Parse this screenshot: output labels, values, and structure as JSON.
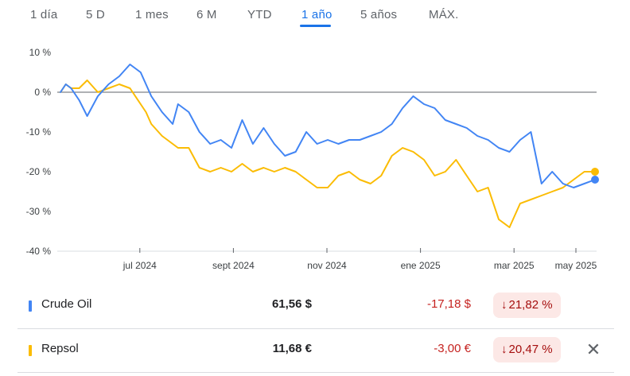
{
  "tabs": [
    {
      "label": "1 día"
    },
    {
      "label": "5 D"
    },
    {
      "label": "1 mes"
    },
    {
      "label": "6 M"
    },
    {
      "label": "YTD"
    },
    {
      "label": "1 año",
      "active": true
    },
    {
      "label": "5 años"
    },
    {
      "label": "MÁX."
    }
  ],
  "chart_data": {
    "type": "line",
    "ylim": [
      -40,
      10
    ],
    "y_ticks": [
      10,
      0,
      -10,
      -20,
      -30,
      -40
    ],
    "y_tick_labels": [
      "10 %",
      "0 %",
      "-10 %",
      "-20 %",
      "-30 %",
      "-40 %"
    ],
    "x_tick_labels": [
      "jul 2024",
      "sept 2024",
      "nov 2024",
      "ene 2025",
      "mar 2025",
      "may 2025"
    ],
    "x_tick_positions": [
      0.15,
      0.325,
      0.5,
      0.675,
      0.85,
      1.02
    ],
    "baseline": 0,
    "grid": false,
    "series": [
      {
        "name": "Crude Oil",
        "color": "#4285f4",
        "x": [
          0,
          0.01,
          0.02,
          0.035,
          0.05,
          0.07,
          0.09,
          0.11,
          0.13,
          0.15,
          0.16,
          0.17,
          0.19,
          0.21,
          0.22,
          0.24,
          0.26,
          0.28,
          0.3,
          0.32,
          0.34,
          0.36,
          0.38,
          0.4,
          0.42,
          0.44,
          0.46,
          0.48,
          0.5,
          0.52,
          0.54,
          0.56,
          0.58,
          0.6,
          0.62,
          0.64,
          0.66,
          0.68,
          0.7,
          0.72,
          0.74,
          0.76,
          0.78,
          0.8,
          0.82,
          0.84,
          0.86,
          0.88,
          0.9,
          0.92,
          0.94,
          0.96,
          0.98,
          1.0
        ],
        "values": [
          0,
          2,
          1,
          -2,
          -6,
          -1,
          2,
          4,
          7,
          5,
          2,
          -1,
          -5,
          -8,
          -3,
          -5,
          -10,
          -13,
          -12,
          -14,
          -7,
          -13,
          -9,
          -13,
          -16,
          -15,
          -10,
          -13,
          -12,
          -13,
          -12,
          -12,
          -11,
          -10,
          -8,
          -4,
          -1,
          -3,
          -4,
          -7,
          -8,
          -9,
          -11,
          -12,
          -14,
          -15,
          -12,
          -10,
          -23,
          -20,
          -23,
          -24,
          -23,
          -22
        ]
      },
      {
        "name": "Repsol",
        "color": "#fbbc04",
        "x": [
          0,
          0.01,
          0.02,
          0.035,
          0.05,
          0.07,
          0.09,
          0.11,
          0.13,
          0.15,
          0.16,
          0.17,
          0.19,
          0.21,
          0.22,
          0.24,
          0.26,
          0.28,
          0.3,
          0.32,
          0.34,
          0.36,
          0.38,
          0.4,
          0.42,
          0.44,
          0.46,
          0.48,
          0.5,
          0.52,
          0.54,
          0.56,
          0.58,
          0.6,
          0.62,
          0.64,
          0.66,
          0.68,
          0.7,
          0.72,
          0.74,
          0.76,
          0.78,
          0.8,
          0.82,
          0.84,
          0.86,
          0.88,
          0.9,
          0.92,
          0.94,
          0.96,
          0.98,
          1.0
        ],
        "values": [
          0,
          2,
          1,
          1,
          3,
          0,
          1,
          2,
          1,
          -3,
          -5,
          -8,
          -11,
          -13,
          -14,
          -14,
          -19,
          -20,
          -19,
          -20,
          -18,
          -20,
          -19,
          -20,
          -19,
          -20,
          -22,
          -24,
          -24,
          -21,
          -20,
          -22,
          -23,
          -21,
          -16,
          -14,
          -15,
          -17,
          -21,
          -20,
          -17,
          -21,
          -25,
          -24,
          -32,
          -34,
          -28,
          -27,
          -26,
          -25,
          -24,
          -22,
          -20,
          -20
        ]
      }
    ]
  },
  "rows": [
    {
      "name": "Crude Oil",
      "price": "61,56 $",
      "change": "-17,18 $",
      "percent": "21,82 %",
      "color": "#4285f4"
    },
    {
      "name": "Repsol",
      "price": "11,68 €",
      "change": "-3,00 €",
      "percent": "20,47 %",
      "color": "#fbbc04"
    }
  ],
  "icons": {
    "down_arrow": "arrow-down-icon",
    "close": "close-icon"
  }
}
